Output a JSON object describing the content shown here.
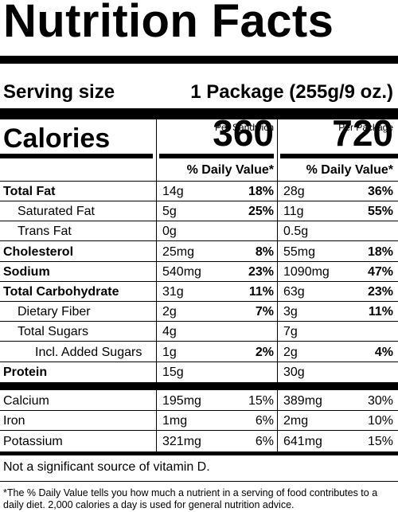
{
  "title": "Nutrition Facts",
  "serving": {
    "label": "Serving size",
    "value": "1 Package (255g/9 oz.)"
  },
  "calories": {
    "label": "Calories",
    "per_sandwich": "360",
    "per_package": "720"
  },
  "columns": {
    "col1_heading": "Per Sandwich",
    "col2_heading": "Per Package",
    "dv_heading": "% Daily Value*"
  },
  "nutrients": [
    {
      "name": "Total Fat",
      "bold": true,
      "indent": 0,
      "a1": "14g",
      "p1": "18%",
      "a2": "28g",
      "p2": "36%"
    },
    {
      "name": "Saturated Fat",
      "bold": false,
      "indent": 1,
      "a1": "5g",
      "p1": "25%",
      "a2": "11g",
      "p2": "55%"
    },
    {
      "name": "Trans Fat",
      "bold": false,
      "indent": 1,
      "a1": "0g",
      "p1": "",
      "a2": "0.5g",
      "p2": ""
    },
    {
      "name": "Cholesterol",
      "bold": true,
      "indent": 0,
      "a1": "25mg",
      "p1": "8%",
      "a2": "55mg",
      "p2": "18%"
    },
    {
      "name": "Sodium",
      "bold": true,
      "indent": 0,
      "a1": "540mg",
      "p1": "23%",
      "a2": "1090mg",
      "p2": "47%"
    },
    {
      "name": "Total Carbohydrate",
      "bold": true,
      "indent": 0,
      "a1": "31g",
      "p1": "11%",
      "a2": "63g",
      "p2": "23%"
    },
    {
      "name": "Dietary Fiber",
      "bold": false,
      "indent": 1,
      "a1": "2g",
      "p1": "7%",
      "a2": "3g",
      "p2": "11%"
    },
    {
      "name": "Total Sugars",
      "bold": false,
      "indent": 1,
      "a1": "4g",
      "p1": "",
      "a2": "7g",
      "p2": ""
    },
    {
      "name": "Incl. Added Sugars",
      "bold": false,
      "indent": 2,
      "a1": "1g",
      "p1": "2%",
      "a2": "2g",
      "p2": "4%"
    },
    {
      "name": "Protein",
      "bold": true,
      "indent": 0,
      "a1": "15g",
      "p1": "",
      "a2": "30g",
      "p2": ""
    }
  ],
  "minerals": [
    {
      "name": "Calcium",
      "a1": "195mg",
      "p1": "15%",
      "a2": "389mg",
      "p2": "30%"
    },
    {
      "name": "Iron",
      "a1": "1mg",
      "p1": "6%",
      "a2": "2mg",
      "p2": "10%"
    },
    {
      "name": "Potassium",
      "a1": "321mg",
      "p1": "6%",
      "a2": "641mg",
      "p2": "15%"
    }
  ],
  "footnotes": {
    "not_significant": "Not a significant source of vitamin D.",
    "dv_explanation": "*The % Daily Value tells you how much a nutrient in a serving of food contributes to a daily diet. 2,000 calories a day is used for general nutrition advice."
  }
}
